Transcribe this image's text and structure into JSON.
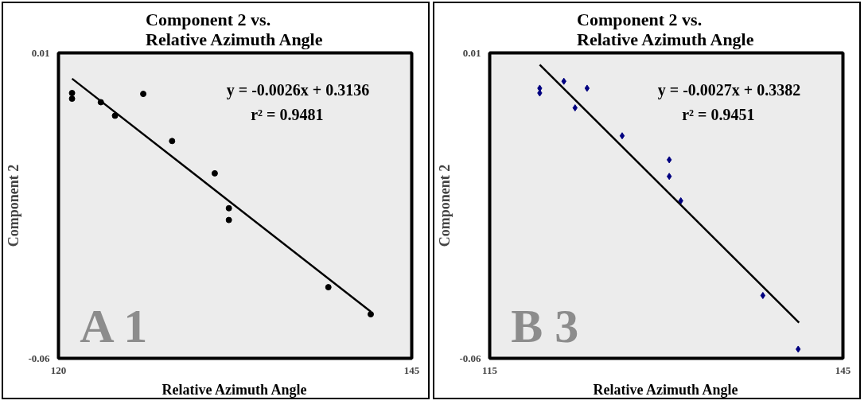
{
  "chart_data": [
    {
      "type": "scatter",
      "title": "Component 2 vs.\nRelative Azimuth Angle",
      "xlabel": "Relative Azimuth Angle",
      "ylabel": "Component 2",
      "xlim": [
        120,
        145
      ],
      "ylim": [
        -0.06,
        0.01
      ],
      "xticks": [
        120,
        145
      ],
      "yticks": [
        -0.06,
        0.01
      ],
      "annotations": [
        "y = -0.0026x + 0.3136",
        "r² = 0.9481",
        "A 1"
      ],
      "series": [
        {
          "type": "scatter",
          "marker": "circle",
          "color": "#000000",
          "x": [
            120.96,
            120.96,
            123.0,
            124.0,
            126.0,
            128.04,
            131.06,
            132.06,
            132.06,
            139.1,
            142.1
          ],
          "values": [
            0.0008,
            -0.0005,
            -0.0013,
            -0.0044,
            0.0006,
            -0.0102,
            -0.0176,
            -0.0256,
            -0.0283,
            -0.0437,
            -0.0499
          ]
        },
        {
          "type": "line",
          "color": "#000000",
          "x": [
            120.96,
            142.1
          ],
          "values": [
            0.0041,
            -0.0493
          ]
        }
      ]
    },
    {
      "type": "scatter",
      "title": "Component 2 vs.\nRelative Azimuth Angle",
      "xlabel": "Relative Azimuth Angle",
      "ylabel": "Component 2",
      "xlim": [
        115,
        145
      ],
      "ylim": [
        -0.06,
        0.01
      ],
      "xticks": [
        115,
        145
      ],
      "yticks": [
        -0.06,
        0.01
      ],
      "annotations": [
        "y = -0.0027x + 0.3382",
        "r² = 0.9451",
        "B 3"
      ],
      "series": [
        {
          "type": "scatter",
          "marker": "diamond",
          "color": "#000080",
          "x": [
            119.25,
            119.25,
            121.3,
            123.27,
            122.25,
            126.25,
            130.25,
            130.25,
            131.23,
            138.2,
            141.2
          ],
          "values": [
            0.0019,
            0.0008,
            0.0035,
            0.0019,
            -0.0026,
            -0.009,
            -0.0145,
            -0.0183,
            -0.0239,
            -0.0456,
            -0.0579
          ]
        },
        {
          "type": "line",
          "color": "#000000",
          "x": [
            119.25,
            141.27
          ],
          "values": [
            0.0073,
            -0.0518
          ]
        }
      ]
    }
  ]
}
